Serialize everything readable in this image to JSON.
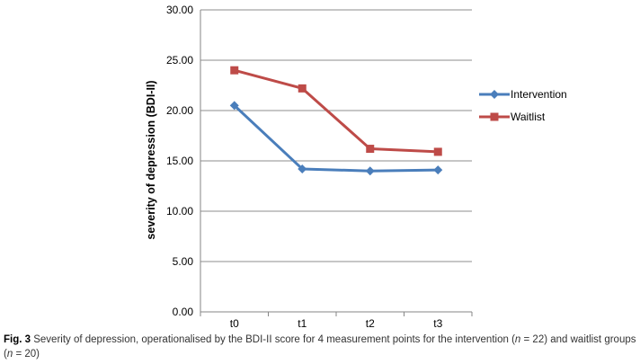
{
  "chart_data": {
    "type": "line",
    "categories": [
      "t0",
      "t1",
      "t2",
      "t3"
    ],
    "series": [
      {
        "name": "Intervention",
        "values": [
          20.5,
          14.2,
          14.0,
          14.1
        ],
        "color": "#4a7ebb",
        "marker": "diamond"
      },
      {
        "name": "Waitlist",
        "values": [
          24.0,
          22.2,
          16.2,
          15.9
        ],
        "color": "#be4b48",
        "marker": "square"
      }
    ],
    "title": "",
    "xlabel": "",
    "ylabel": "severity of depression (BDI-II)",
    "ylim": [
      0,
      30
    ],
    "yticks": [
      "0.00",
      "5.00",
      "10.00",
      "15.00",
      "20.00",
      "25.00",
      "30.00"
    ],
    "grid": true,
    "legend_position": "right"
  },
  "caption": {
    "label": "Fig. 3",
    "part1": "Severity of depression, operationalised by the BDI-II score for 4 measurement points for the intervention (",
    "n1_var": "n",
    "n1_val": " = 22) and waitlist groups (",
    "n2_var": "n",
    "n2_val": " = 20)"
  }
}
